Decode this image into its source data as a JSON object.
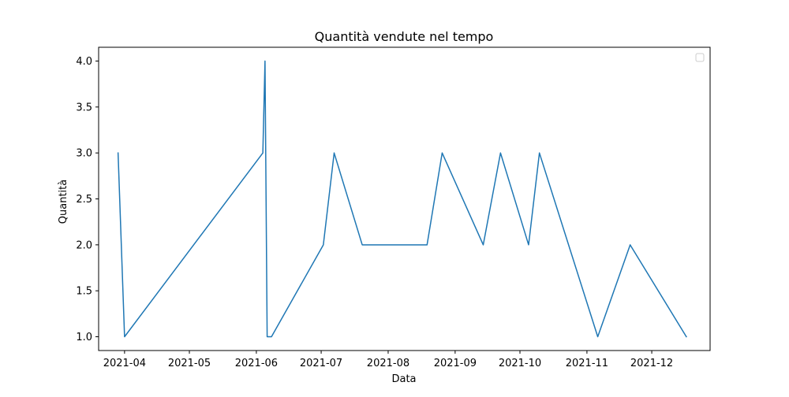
{
  "chart_data": {
    "type": "line",
    "title": "Quantità vendute nel tempo",
    "xlabel": "Data",
    "ylabel": "Quantità",
    "x_ticks": [
      "2021-04",
      "2021-05",
      "2021-06",
      "2021-07",
      "2021-08",
      "2021-09",
      "2021-10",
      "2021-11",
      "2021-12"
    ],
    "y_ticks": [
      "1.0",
      "1.5",
      "2.0",
      "2.5",
      "3.0",
      "3.5",
      "4.0"
    ],
    "xlim": [
      "2021-03-20",
      "2021-12-28"
    ],
    "ylim": [
      0.85,
      4.15
    ],
    "grid": false,
    "legend": "top-right (empty)",
    "series": [
      {
        "color": "#1f77b4",
        "points": [
          [
            "2021-03-29",
            3
          ],
          [
            "2021-04-01",
            1
          ],
          [
            "2021-06-04",
            3
          ],
          [
            "2021-06-05",
            4
          ],
          [
            "2021-06-06",
            1
          ],
          [
            "2021-06-08",
            1
          ],
          [
            "2021-07-02",
            2
          ],
          [
            "2021-07-07",
            3
          ],
          [
            "2021-07-20",
            2
          ],
          [
            "2021-08-19",
            2
          ],
          [
            "2021-08-26",
            3
          ],
          [
            "2021-09-14",
            2
          ],
          [
            "2021-09-22",
            3
          ],
          [
            "2021-10-05",
            2
          ],
          [
            "2021-10-10",
            3
          ],
          [
            "2021-11-06",
            1
          ],
          [
            "2021-11-21",
            2
          ],
          [
            "2021-12-17",
            1
          ]
        ]
      }
    ]
  }
}
